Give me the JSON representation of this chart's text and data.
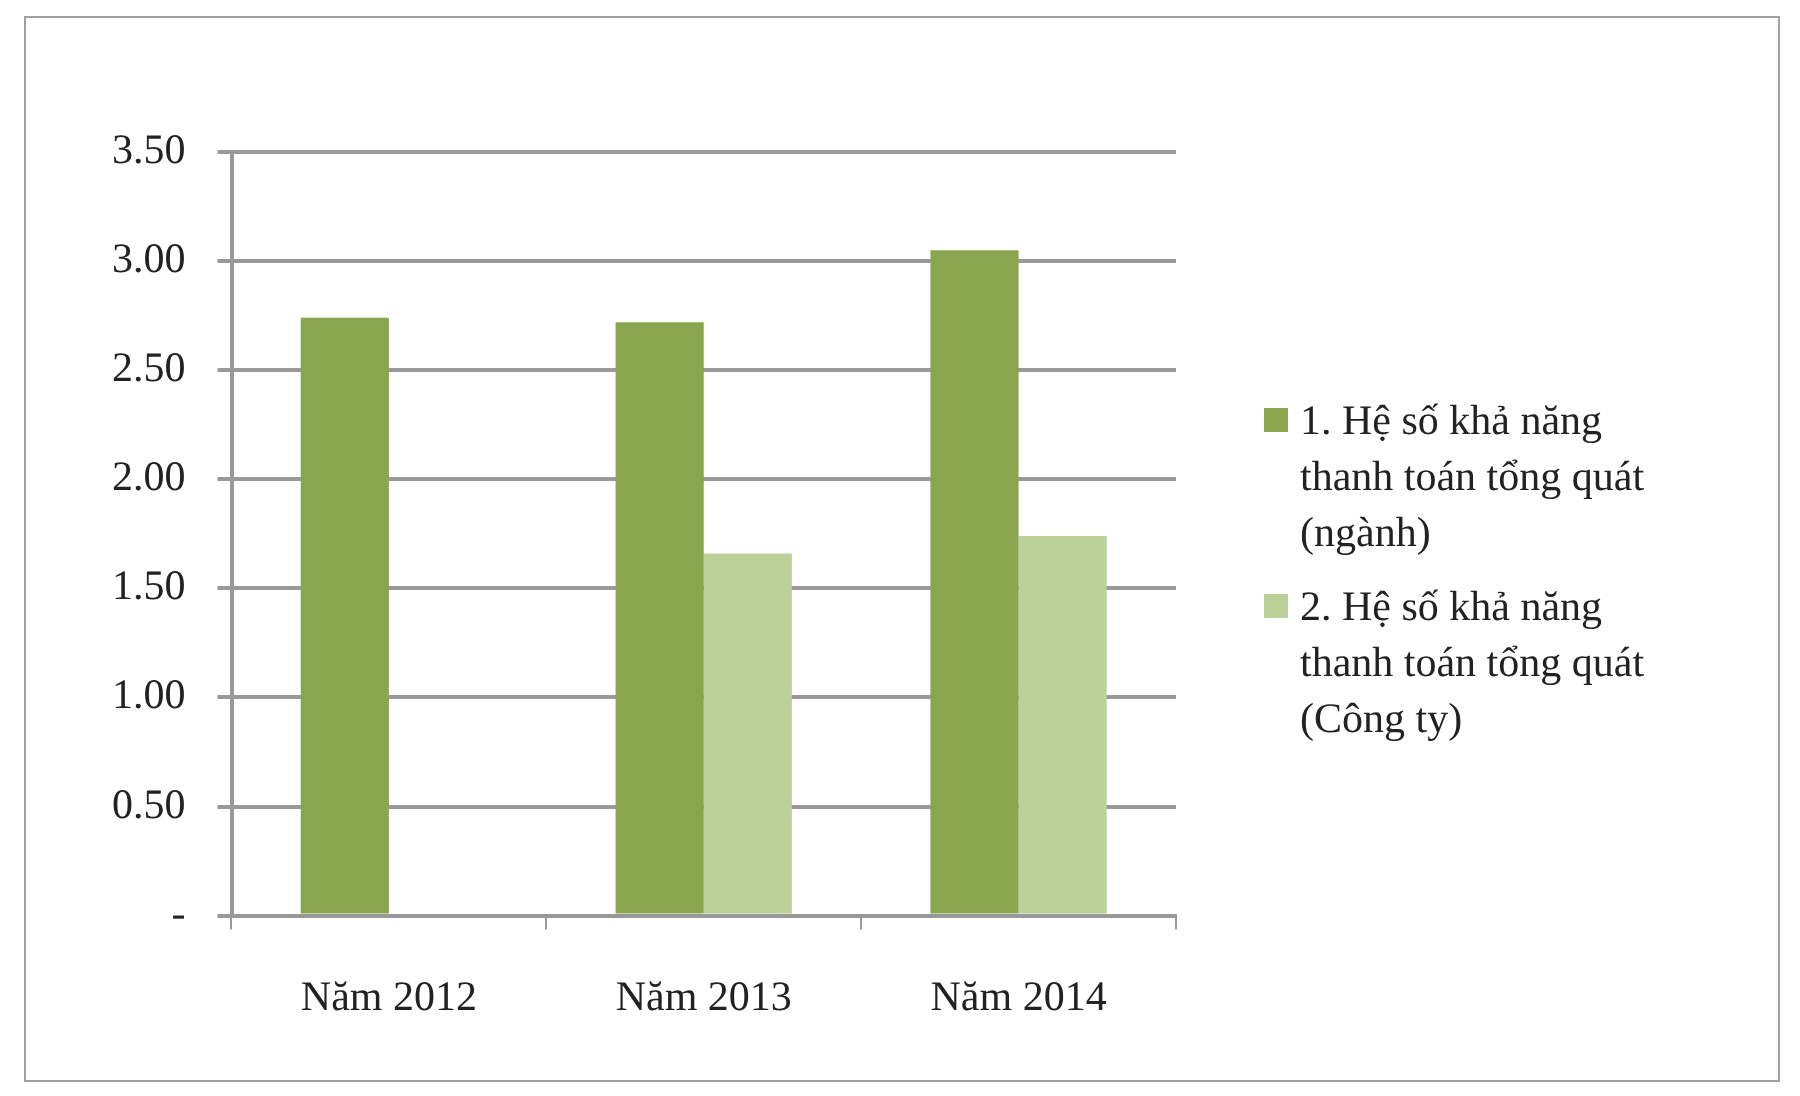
{
  "chart_data": {
    "type": "bar",
    "categories": [
      "Năm 2012",
      "Năm 2013",
      "Năm 2014"
    ],
    "series": [
      {
        "name": "1. Hệ số khả năng thanh toán tổng quát (ngành)",
        "color": "#89a54e",
        "values": [
          2.74,
          2.72,
          3.05
        ]
      },
      {
        "name": "2. Hệ số khả năng thanh toán tổng quát (Công ty)",
        "color": "#bcd19a",
        "values": [
          0,
          1.66,
          1.74
        ]
      }
    ],
    "ylim": [
      0,
      3.5
    ],
    "yticks": [
      {
        "value": 0,
        "label": "-"
      },
      {
        "value": 0.5,
        "label": "0.50"
      },
      {
        "value": 1,
        "label": "1.00"
      },
      {
        "value": 1.5,
        "label": "1.50"
      },
      {
        "value": 2,
        "label": "2.00"
      },
      {
        "value": 2.5,
        "label": "2.50"
      },
      {
        "value": 3,
        "label": "3.00"
      },
      {
        "value": 3.5,
        "label": "3.50"
      }
    ],
    "grid": "y",
    "legend": "right"
  }
}
